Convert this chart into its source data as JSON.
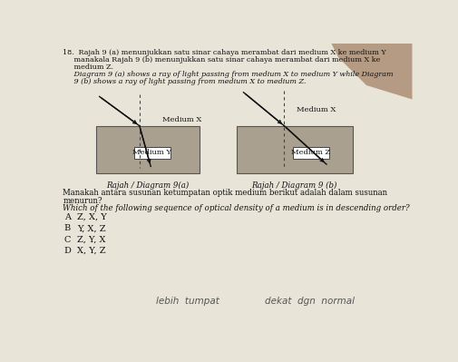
{
  "bg_color": "#ddd8cc",
  "paper_color": "#e8e4d8",
  "diagram_bg": "#aaa090",
  "box_color": "#ffffff",
  "text_color": "#111111",
  "gray_text": "#666666",
  "header_lines": [
    "18.  Rajah 9 (a) menunjukkan satu sinar cahaya merambat dari medium X ke medium Y",
    "     manakala Rajah 9 (b) menunjukkan satu sinar cahaya merambat dari medium X ke",
    "     medium Z.",
    "     Diagram 9 (a) shows a ray of light passing from medium X to medium Y while Diagram",
    "     9 (b) shows a ray of light passing from medium X to medium Z."
  ],
  "header_italic": [
    false,
    false,
    false,
    true,
    true
  ],
  "dia_a_label": "Rajah / Diagram 9(a)",
  "dia_b_label": "Rajah / Diagram 9 (b)",
  "med_x_a": "Medium X",
  "med_y": "Medium Y",
  "med_x_b": "Medium X",
  "med_z": "Medium Z",
  "question_normal": [
    "Manakah antara susunan ketumpatan optik medium berikut adalah dalam susunan",
    "menurun?"
  ],
  "question_italic": "Which of the following sequence of optical density of a medium is in descending order?",
  "options": [
    [
      "A",
      "Z, X, Y"
    ],
    [
      "B",
      "Y, X, Z"
    ],
    [
      "C",
      "Z, Y, X"
    ],
    [
      "D",
      "X, Y, Z"
    ]
  ],
  "hw1": "lebih  tumpat",
  "hw2": "dekat  dgn  normal"
}
